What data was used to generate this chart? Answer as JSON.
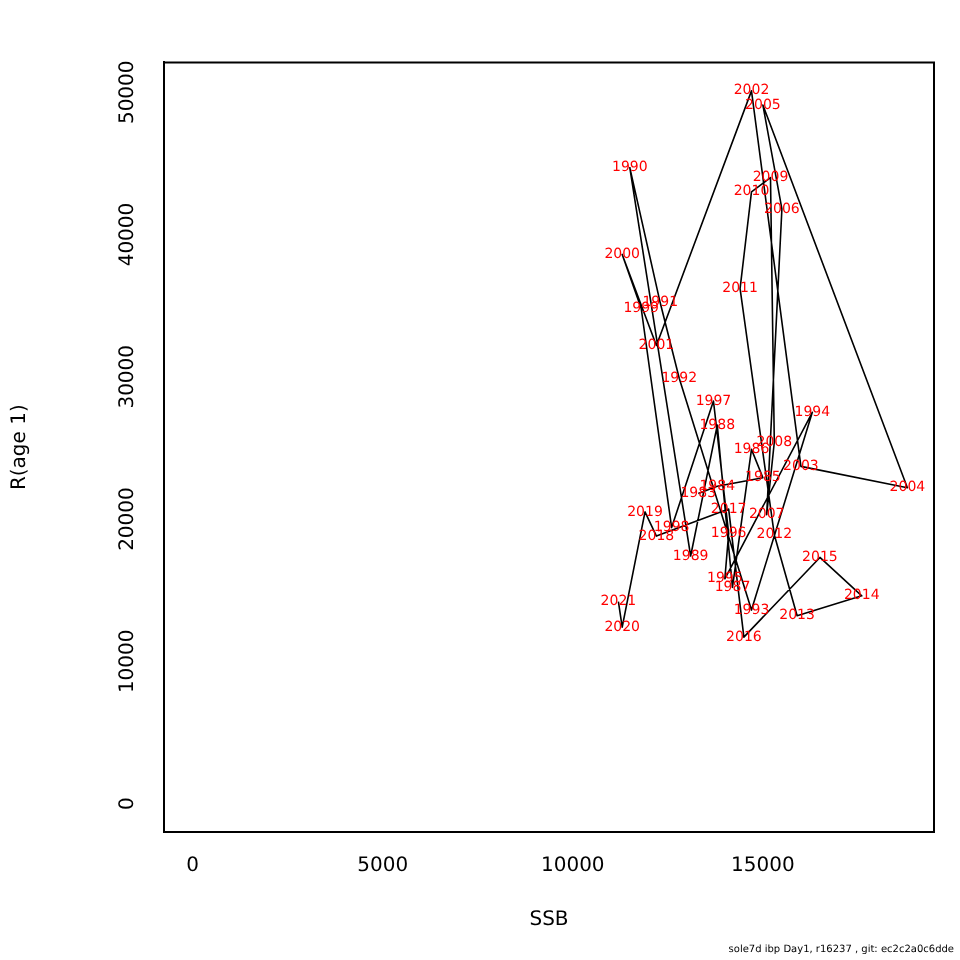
{
  "chart_data": {
    "type": "line",
    "xlabel": "SSB",
    "ylabel": "R(age 1)",
    "xlim": [
      -750,
      19500
    ],
    "ylim": [
      -2000,
      52100
    ],
    "xticks": [
      0,
      5000,
      10000,
      15000
    ],
    "yticks": [
      0,
      10000,
      20000,
      30000,
      40000,
      50000
    ],
    "grid": false,
    "legend": false,
    "marker": "none",
    "line_style": "solid",
    "series": [
      {
        "color": "#000000",
        "x": [
          13300,
          13800,
          15000,
          14700,
          14200,
          13800,
          13100,
          11500,
          12300,
          12800,
          14700,
          16300,
          14000,
          14100,
          13700,
          12600,
          11800,
          11300,
          12200,
          14700,
          16000,
          18800,
          15000,
          15500,
          15100,
          15300,
          15200,
          14700,
          14400,
          15300,
          15900,
          17600,
          16500,
          14500,
          14100,
          12200,
          11900,
          11300,
          11200
        ],
        "values": [
          21800,
          22300,
          22900,
          24900,
          15200,
          26600,
          17400,
          44700,
          35200,
          29900,
          13600,
          27500,
          15800,
          19000,
          28300,
          19400,
          34800,
          38600,
          32200,
          50100,
          23700,
          22200,
          49100,
          41800,
          20300,
          25400,
          44000,
          43000,
          36200,
          18900,
          13200,
          14600,
          17300,
          11700,
          20700,
          18800,
          20500,
          12400,
          14200
        ]
      }
    ],
    "annotations": [
      {
        "text": "1983",
        "x": 13300,
        "y": 21800
      },
      {
        "text": "1984",
        "x": 13800,
        "y": 22300
      },
      {
        "text": "1985",
        "x": 15000,
        "y": 22900
      },
      {
        "text": "1986",
        "x": 14700,
        "y": 24900
      },
      {
        "text": "1987",
        "x": 14200,
        "y": 15200
      },
      {
        "text": "1988",
        "x": 13800,
        "y": 26600
      },
      {
        "text": "1989",
        "x": 13100,
        "y": 17400
      },
      {
        "text": "1990",
        "x": 11500,
        "y": 44700
      },
      {
        "text": "1991",
        "x": 12300,
        "y": 35200
      },
      {
        "text": "1992",
        "x": 12800,
        "y": 29900
      },
      {
        "text": "1993",
        "x": 14700,
        "y": 13600
      },
      {
        "text": "1994",
        "x": 16300,
        "y": 27500
      },
      {
        "text": "1995",
        "x": 14000,
        "y": 15800
      },
      {
        "text": "1996",
        "x": 14100,
        "y": 19000
      },
      {
        "text": "1997",
        "x": 13700,
        "y": 28300
      },
      {
        "text": "1998",
        "x": 12600,
        "y": 19400
      },
      {
        "text": "1999",
        "x": 11800,
        "y": 34800
      },
      {
        "text": "2000",
        "x": 11300,
        "y": 38600
      },
      {
        "text": "2001",
        "x": 12200,
        "y": 32200
      },
      {
        "text": "2002",
        "x": 14700,
        "y": 50100
      },
      {
        "text": "2003",
        "x": 16000,
        "y": 23700
      },
      {
        "text": "2004",
        "x": 18800,
        "y": 22200
      },
      {
        "text": "2005",
        "x": 15000,
        "y": 49100
      },
      {
        "text": "2006",
        "x": 15500,
        "y": 41800
      },
      {
        "text": "2007",
        "x": 15100,
        "y": 20300
      },
      {
        "text": "2008",
        "x": 15300,
        "y": 25400
      },
      {
        "text": "2009",
        "x": 15200,
        "y": 44000
      },
      {
        "text": "2010",
        "x": 14700,
        "y": 43000
      },
      {
        "text": "2011",
        "x": 14400,
        "y": 36200
      },
      {
        "text": "2012",
        "x": 15300,
        "y": 18900
      },
      {
        "text": "2013",
        "x": 15900,
        "y": 13200
      },
      {
        "text": "2014",
        "x": 17600,
        "y": 14600
      },
      {
        "text": "2015",
        "x": 16500,
        "y": 17300
      },
      {
        "text": "2016",
        "x": 14500,
        "y": 11700
      },
      {
        "text": "2017",
        "x": 14100,
        "y": 20700
      },
      {
        "text": "2018",
        "x": 12200,
        "y": 18800
      },
      {
        "text": "2019",
        "x": 11900,
        "y": 20500
      },
      {
        "text": "2020",
        "x": 11300,
        "y": 12400
      },
      {
        "text": "2021",
        "x": 11200,
        "y": 14200
      },
      "sole7d ibp Day1, r16237 , git: ec2c2a0c6dde"
    ]
  }
}
